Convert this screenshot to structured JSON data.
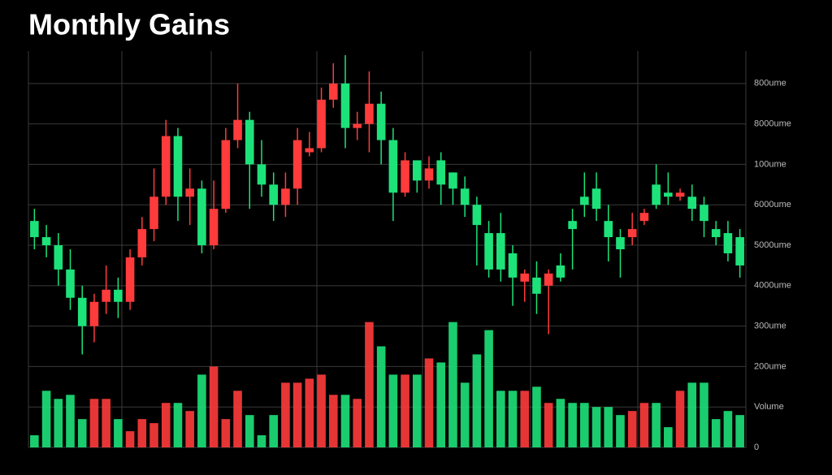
{
  "chart_data": {
    "type": "candlestick",
    "title": "Monthly Gains",
    "up_color": "#ff3b3b",
    "down_color": "#1de27a",
    "grid": true,
    "ylim": [
      0,
      9.8
    ],
    "yticks": [
      {
        "value": 0,
        "label": "0"
      },
      {
        "value": 1,
        "label": "Volume"
      },
      {
        "value": 2,
        "label": "200ume"
      },
      {
        "value": 3,
        "label": "300ume"
      },
      {
        "value": 4,
        "label": "4000ume"
      },
      {
        "value": 5,
        "label": "5000ume"
      },
      {
        "value": 6,
        "label": "6000ume"
      },
      {
        "value": 7,
        "label": "100ume"
      },
      {
        "value": 8,
        "label": "8000ume"
      },
      {
        "value": 9,
        "label": "800ume"
      }
    ],
    "open": [
      5.6,
      5.2,
      5.0,
      4.4,
      3.7,
      3.0,
      3.6,
      3.9,
      3.6,
      4.7,
      5.4,
      6.2,
      7.7,
      6.2,
      6.4,
      5.0,
      5.9,
      7.6,
      8.1,
      7.0,
      6.5,
      6.0,
      6.4,
      7.3,
      7.4,
      8.6,
      9.0,
      7.9,
      8.0,
      8.5,
      7.6,
      6.3,
      7.1,
      6.6,
      7.1,
      6.8,
      6.4,
      6.0,
      5.3,
      5.3,
      4.8,
      4.1,
      4.2,
      4.0,
      4.5,
      5.6,
      6.2,
      6.4,
      5.6,
      5.2,
      5.2,
      5.6,
      6.5,
      6.3,
      6.2,
      6.2,
      6.0,
      5.4,
      5.3,
      5.2
    ],
    "close": [
      5.2,
      5.0,
      4.4,
      3.7,
      3.0,
      3.6,
      3.9,
      3.6,
      4.7,
      5.4,
      6.2,
      7.7,
      6.2,
      6.4,
      5.0,
      5.9,
      7.6,
      8.1,
      7.0,
      6.5,
      6.0,
      6.4,
      7.6,
      7.4,
      8.6,
      9.0,
      7.9,
      8.0,
      8.5,
      7.6,
      6.3,
      7.1,
      6.6,
      6.9,
      6.5,
      6.4,
      6.0,
      5.5,
      4.4,
      4.4,
      4.2,
      4.3,
      3.8,
      4.3,
      4.2,
      5.4,
      6.0,
      5.9,
      5.2,
      4.9,
      5.4,
      5.8,
      6.0,
      6.2,
      6.3,
      5.9,
      5.6,
      5.2,
      4.8,
      4.5
    ],
    "high": [
      5.9,
      5.5,
      5.3,
      4.9,
      4.0,
      3.8,
      4.5,
      4.2,
      4.9,
      5.7,
      6.9,
      8.1,
      7.9,
      6.9,
      6.6,
      6.6,
      7.9,
      9.0,
      8.3,
      7.6,
      6.8,
      6.8,
      7.9,
      7.8,
      8.9,
      9.5,
      9.7,
      8.3,
      9.3,
      8.8,
      7.9,
      7.3,
      7.1,
      7.2,
      7.3,
      6.8,
      6.7,
      6.2,
      5.6,
      5.8,
      5.0,
      4.4,
      4.6,
      4.4,
      4.8,
      5.9,
      6.8,
      6.8,
      6.0,
      5.4,
      5.8,
      5.9,
      7.0,
      6.8,
      6.4,
      6.5,
      6.2,
      5.6,
      5.6,
      5.4
    ],
    "low": [
      4.9,
      4.7,
      4.0,
      3.4,
      2.3,
      2.6,
      3.3,
      3.2,
      3.4,
      4.5,
      5.1,
      6.0,
      5.6,
      5.5,
      4.8,
      4.9,
      5.8,
      7.4,
      5.9,
      6.2,
      5.6,
      5.7,
      6.0,
      7.2,
      7.3,
      8.4,
      7.4,
      7.6,
      7.3,
      7.0,
      5.6,
      6.2,
      6.3,
      6.4,
      6.0,
      6.0,
      5.7,
      4.5,
      4.2,
      4.1,
      3.5,
      3.6,
      3.3,
      2.8,
      4.1,
      4.4,
      5.7,
      5.6,
      4.6,
      4.2,
      5.0,
      5.5,
      5.9,
      6.0,
      6.1,
      5.6,
      5.2,
      5.0,
      4.6,
      4.2
    ],
    "volume": [
      0.3,
      1.4,
      1.2,
      1.3,
      0.7,
      1.2,
      1.2,
      0.7,
      0.4,
      0.7,
      0.6,
      1.1,
      1.1,
      0.9,
      1.8,
      2.0,
      0.7,
      1.4,
      0.8,
      0.3,
      0.8,
      1.6,
      1.6,
      1.7,
      1.8,
      1.3,
      1.3,
      1.2,
      3.1,
      2.5,
      1.8,
      1.8,
      1.8,
      2.2,
      2.1,
      3.1,
      1.6,
      2.3,
      2.9,
      1.4,
      1.4,
      1.4,
      1.5,
      1.1,
      1.2,
      1.1,
      1.1,
      1.0,
      1.0,
      0.8,
      0.9,
      1.1,
      1.1,
      0.5,
      1.4,
      1.6,
      1.6,
      0.7,
      0.9,
      0.8
    ]
  }
}
